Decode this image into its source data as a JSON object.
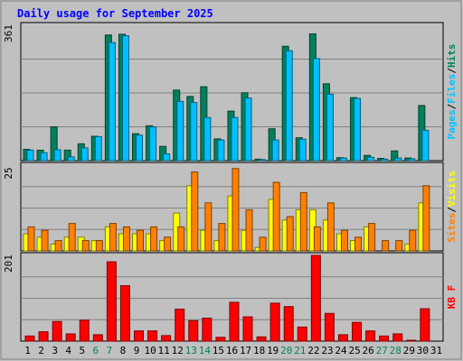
{
  "chart_data": {
    "type": "bar",
    "title": "Daily usage for September 2025",
    "categories": [
      "1",
      "2",
      "3",
      "4",
      "5",
      "6",
      "7",
      "8",
      "9",
      "10",
      "11",
      "12",
      "13",
      "14",
      "15",
      "16",
      "17",
      "18",
      "19",
      "20",
      "21",
      "22",
      "23",
      "24",
      "25",
      "26",
      "27",
      "28",
      "29",
      "30",
      "31"
    ],
    "weekend_days": [
      "6",
      "7",
      "13",
      "14",
      "20",
      "21",
      "27",
      "28"
    ],
    "panels": [
      {
        "id": "hits-files-pages",
        "ymax": 361,
        "ymax_label": "361",
        "side_labels": [
          "Pages",
          "Files",
          "Hits"
        ],
        "series": [
          {
            "name": "Hits",
            "color": "#00805c",
            "values": [
              30,
              28,
              90,
              28,
              45,
              65,
              335,
              337,
              72,
              93,
              38,
              188,
              171,
              197,
              58,
              132,
              181,
              4,
              85,
              305,
              61,
              338,
              205,
              8,
              168,
              14,
              6,
              26,
              7,
              147,
              0
            ]
          },
          {
            "name": "Files",
            "color": "#00c0ff",
            "values": [
              28,
              21,
              29,
              10,
              34,
              64,
              315,
              333,
              68,
              90,
              18,
              158,
              155,
              115,
              55,
              115,
              167,
              3,
              55,
              293,
              57,
              272,
              177,
              7,
              166,
              9,
              4,
              7,
              5,
              81,
              0
            ]
          },
          {
            "name": "Pages",
            "color": "#00c0ff",
            "values": [
              0,
              0,
              0,
              0,
              0,
              0,
              0,
              0,
              0,
              0,
              0,
              0,
              0,
              0,
              0,
              0,
              0,
              0,
              0,
              0,
              0,
              0,
              0,
              0,
              0,
              0,
              0,
              0,
              0,
              0,
              0
            ]
          }
        ]
      },
      {
        "id": "visits-sites",
        "ymax": 25,
        "ymax_label": "25",
        "side_labels": [
          "Sites",
          "Visits"
        ],
        "series": [
          {
            "name": "Visits",
            "color": "#ffff00",
            "values": [
              5,
              4,
              2,
              4,
              4,
              3,
              7,
              5,
              5,
              5,
              3,
              11,
              19,
              6,
              3,
              16,
              6,
              1,
              15,
              9,
              12,
              12,
              9,
              5,
              3,
              7,
              0,
              0,
              2,
              14,
              0
            ]
          },
          {
            "name": "Sites",
            "color": "#ff8000",
            "values": [
              7,
              6,
              3,
              8,
              3,
              3,
              8,
              7,
              6,
              7,
              4,
              7,
              23,
              14,
              8,
              24,
              12,
              4,
              20,
              10,
              17,
              7,
              14,
              6,
              4,
              8,
              3,
              3,
              6,
              19,
              0
            ]
          }
        ]
      },
      {
        "id": "kbytes",
        "ymax": 201,
        "ymax_label": "201",
        "side_labels": [
          "KB F"
        ],
        "series": [
          {
            "name": "KB F",
            "color": "#ff0000",
            "values": [
              12,
              22,
              46,
              17,
              49,
              15,
              186,
              130,
              24,
              24,
              13,
              75,
              48,
              54,
              9,
              91,
              57,
              10,
              89,
              81,
              33,
              201,
              65,
              15,
              44,
              24,
              12,
              17,
              1,
              76,
              0
            ]
          }
        ]
      }
    ]
  }
}
